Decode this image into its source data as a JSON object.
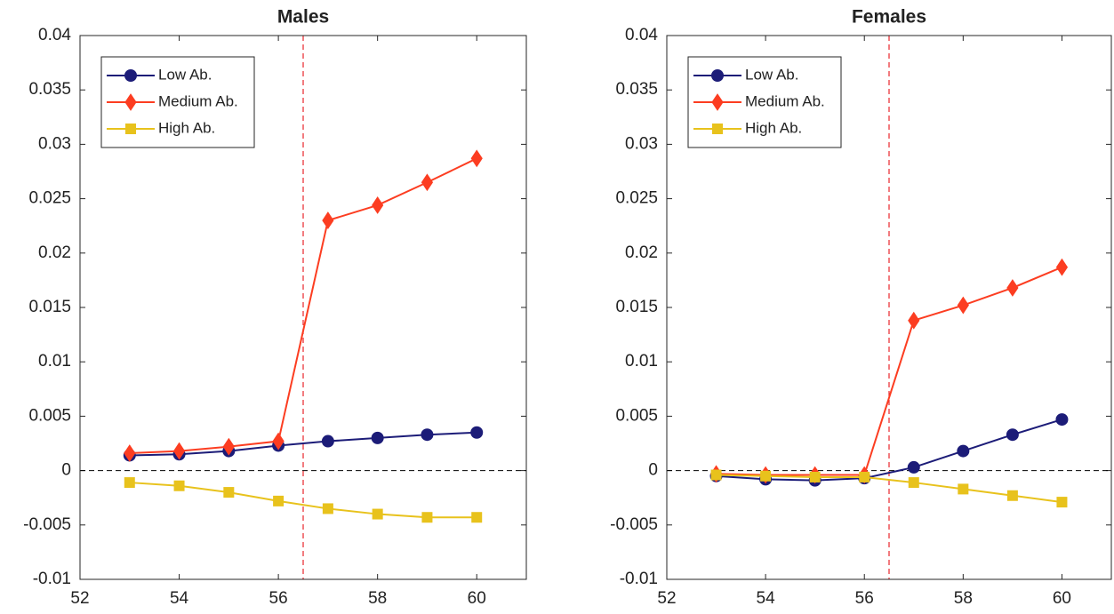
{
  "chart_data": [
    {
      "type": "line",
      "title": "Males",
      "x": [
        53,
        54,
        55,
        56,
        57,
        58,
        59,
        60
      ],
      "series": [
        {
          "name": "Low Ab.",
          "color": "#1c1c78",
          "marker": "circle",
          "values": [
            0.0014,
            0.0015,
            0.0018,
            0.0023,
            0.0027,
            0.003,
            0.0033,
            0.0035
          ]
        },
        {
          "name": "Medium Ab.",
          "color": "#fc3d21",
          "marker": "diamond",
          "values": [
            0.0016,
            0.0018,
            0.0022,
            0.0027,
            0.023,
            0.0244,
            0.0265,
            0.0287
          ]
        },
        {
          "name": "High Ab.",
          "color": "#e8c21c",
          "marker": "square",
          "values": [
            -0.0011,
            -0.0014,
            -0.002,
            -0.0028,
            -0.0035,
            -0.004,
            -0.0043,
            -0.0043
          ]
        }
      ],
      "xlim": [
        52,
        61
      ],
      "xticks": [
        52,
        54,
        56,
        58,
        60
      ],
      "ylim": [
        -0.01,
        0.04
      ],
      "yticks": [
        -0.01,
        -0.005,
        0,
        0.005,
        0.01,
        0.015,
        0.02,
        0.025,
        0.03,
        0.035,
        0.04
      ],
      "vline": 56.5,
      "hline": 0,
      "legend": "upper left"
    },
    {
      "type": "line",
      "title": "Females",
      "x": [
        53,
        54,
        55,
        56,
        57,
        58,
        59,
        60
      ],
      "series": [
        {
          "name": "Low Ab.",
          "color": "#1c1c78",
          "marker": "circle",
          "values": [
            -0.0005,
            -0.0008,
            -0.0009,
            -0.0007,
            0.0003,
            0.0018,
            0.0033,
            0.0047
          ]
        },
        {
          "name": "Medium Ab.",
          "color": "#fc3d21",
          "marker": "diamond",
          "values": [
            -0.0003,
            -0.0004,
            -0.0004,
            -0.0004,
            0.0138,
            0.0152,
            0.0168,
            0.0187
          ]
        },
        {
          "name": "High Ab.",
          "color": "#e8c21c",
          "marker": "square",
          "values": [
            -0.0004,
            -0.0005,
            -0.0006,
            -0.0006,
            -0.0011,
            -0.0017,
            -0.0023,
            -0.0029
          ]
        }
      ],
      "xlim": [
        52,
        61
      ],
      "xticks": [
        52,
        54,
        56,
        58,
        60
      ],
      "ylim": [
        -0.01,
        0.04
      ],
      "yticks": [
        -0.01,
        -0.005,
        0,
        0.005,
        0.01,
        0.015,
        0.02,
        0.025,
        0.03,
        0.035,
        0.04
      ],
      "vline": 56.5,
      "hline": 0,
      "legend": "upper left"
    }
  ]
}
